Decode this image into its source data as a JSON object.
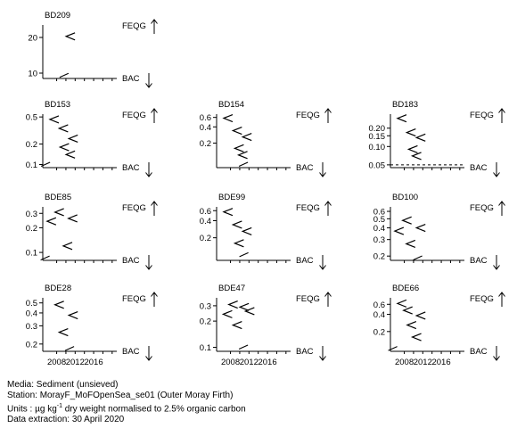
{
  "chart_data": [
    {
      "type": "scatter",
      "title": "BD209",
      "yticks": [
        10,
        20
      ],
      "ylim": [
        8.5,
        23.5
      ],
      "xlim": [
        2005,
        2021
      ],
      "xticks": [
        2008,
        2012,
        2016
      ],
      "show_xtick_labels": false,
      "points": [
        [
          2011,
          20.3
        ]
      ],
      "bac_line": false,
      "bac_marker": [
        2009.6,
        9.3
      ],
      "feqg_label": "FEQG",
      "bac_label": "BAC"
    },
    {
      "type": "scatter",
      "title": "BD153",
      "yticks": [
        0.1,
        0.2,
        0.5
      ],
      "ylim": [
        0.09,
        0.55
      ],
      "log_scale": true,
      "xlim": [
        2005,
        2021
      ],
      "xticks": [
        2008,
        2012,
        2016
      ],
      "show_xtick_labels": false,
      "points": [
        [
          2007.5,
          0.46
        ],
        [
          2009.5,
          0.34
        ],
        [
          2009.7,
          0.18
        ],
        [
          2011.6,
          0.24
        ],
        [
          2011,
          0.14
        ]
      ],
      "bac_line": false,
      "bac_marker": [
        2005.6,
        0.1
      ],
      "feqg_label": "FEQG",
      "bac_label": "BAC"
    },
    {
      "type": "scatter",
      "title": "BD154",
      "yticks": [
        0.2,
        0.4,
        0.6
      ],
      "ylim": [
        0.07,
        0.69
      ],
      "log_scale": true,
      "xlim": [
        2005,
        2021
      ],
      "xticks": [
        2008,
        2012,
        2016
      ],
      "show_xtick_labels": false,
      "points": [
        [
          2007.5,
          0.58
        ],
        [
          2009.5,
          0.34
        ],
        [
          2011.6,
          0.26
        ],
        [
          2009.9,
          0.16
        ],
        [
          2010.7,
          0.12
        ]
      ],
      "bac_line": false,
      "bac_marker": [
        2010.8,
        0.08
      ],
      "feqg_label": "FEQG",
      "bac_label": "BAC"
    },
    {
      "type": "scatter",
      "title": "BD183",
      "yticks": [
        0.05,
        0.1,
        0.15,
        0.2
      ],
      "ylim": [
        0.045,
        0.34
      ],
      "log_scale": true,
      "xlim": [
        2005,
        2021
      ],
      "xticks": [
        2008,
        2012,
        2016
      ],
      "show_xtick_labels": false,
      "points": [
        [
          2007.5,
          0.29
        ],
        [
          2009.5,
          0.17
        ],
        [
          2011.6,
          0.14
        ],
        [
          2009.9,
          0.09
        ],
        [
          2010.7,
          0.07
        ]
      ],
      "bac_line": true,
      "bac_line_value": 0.05,
      "bac_marker": null,
      "feqg_label": "FEQG",
      "bac_label": "BAC"
    },
    {
      "type": "scatter",
      "title": "BDE85",
      "yticks": [
        0.1,
        0.2,
        0.3
      ],
      "ylim": [
        0.08,
        0.36
      ],
      "log_scale": true,
      "xlim": [
        2005,
        2021
      ],
      "xticks": [
        2008,
        2012,
        2016
      ],
      "show_xtick_labels": false,
      "points": [
        [
          2008.6,
          0.31
        ],
        [
          2006.9,
          0.24
        ],
        [
          2011.5,
          0.26
        ],
        [
          2010.4,
          0.12
        ]
      ],
      "bac_line": false,
      "bac_marker": [
        2005.5,
        0.085
      ],
      "feqg_label": "FEQG",
      "bac_label": "BAC"
    },
    {
      "type": "scatter",
      "title": "BDE99",
      "yticks": [
        0.2,
        0.4,
        0.6
      ],
      "ylim": [
        0.08,
        0.7
      ],
      "log_scale": true,
      "xlim": [
        2005,
        2021
      ],
      "xticks": [
        2008,
        2012,
        2016
      ],
      "show_xtick_labels": false,
      "points": [
        [
          2007.5,
          0.57
        ],
        [
          2009.5,
          0.34
        ],
        [
          2011.6,
          0.26
        ],
        [
          2009.9,
          0.16
        ]
      ],
      "bac_line": false,
      "bac_marker": [
        2010.9,
        0.1
      ],
      "feqg_label": "FEQG",
      "bac_label": "BAC"
    },
    {
      "type": "scatter",
      "title": "BD100",
      "yticks": [
        0.2,
        0.3,
        0.4,
        0.5,
        0.6
      ],
      "ylim": [
        0.18,
        0.67
      ],
      "log_scale": true,
      "xlim": [
        2005,
        2021
      ],
      "xticks": [
        2008,
        2012,
        2016
      ],
      "show_xtick_labels": false,
      "points": [
        [
          2008.6,
          0.48
        ],
        [
          2006.9,
          0.37
        ],
        [
          2011.6,
          0.4
        ],
        [
          2009.4,
          0.27
        ]
      ],
      "bac_line": false,
      "bac_marker": [
        2010.9,
        0.19
      ],
      "feqg_label": "FEQG",
      "bac_label": "BAC"
    },
    {
      "type": "scatter",
      "title": "BDE28",
      "yticks": [
        0.2,
        0.3,
        0.4,
        0.5
      ],
      "ylim": [
        0.17,
        0.56
      ],
      "log_scale": true,
      "xlim": [
        2005,
        2021
      ],
      "xticks": [
        2008,
        2012,
        2016
      ],
      "show_xtick_labels": true,
      "points": [
        [
          2008.6,
          0.48
        ],
        [
          2011.6,
          0.38
        ],
        [
          2009.5,
          0.26
        ]
      ],
      "bac_line": false,
      "bac_marker": [
        2010.8,
        0.18
      ],
      "feqg_label": "FEQG",
      "bac_label": "BAC"
    },
    {
      "type": "scatter",
      "title": "BDE47",
      "yticks": [
        0.1,
        0.2,
        0.3
      ],
      "ylim": [
        0.09,
        0.37
      ],
      "log_scale": true,
      "xlim": [
        2005,
        2021
      ],
      "xticks": [
        2008,
        2012,
        2016
      ],
      "show_xtick_labels": true,
      "points": [
        [
          2008.6,
          0.31
        ],
        [
          2011,
          0.29
        ],
        [
          2012.2,
          0.26
        ],
        [
          2007.4,
          0.24
        ],
        [
          2009.5,
          0.18
        ]
      ],
      "bac_line": false,
      "bac_marker": [
        2010.8,
        0.1
      ],
      "feqg_label": "FEQG",
      "bac_label": "BAC"
    },
    {
      "type": "scatter",
      "title": "BDE66",
      "yticks": [
        0.2,
        0.4,
        0.6
      ],
      "ylim": [
        0.09,
        0.78
      ],
      "log_scale": true,
      "xlim": [
        2005,
        2021
      ],
      "xticks": [
        2008,
        2012,
        2016
      ],
      "show_xtick_labels": true,
      "points": [
        [
          2007.5,
          0.62
        ],
        [
          2008.8,
          0.47
        ],
        [
          2011.6,
          0.38
        ],
        [
          2009.6,
          0.26
        ],
        [
          2010.7,
          0.16
        ]
      ],
      "bac_line": false,
      "bac_marker": [
        2005.5,
        0.1
      ],
      "feqg_label": "FEQG",
      "bac_label": "BAC"
    }
  ],
  "footer": {
    "media": "Media: Sediment (unsieved)",
    "station": "Station: MorayF_MoFOpenSea_se01 (Outer Moray Firth)",
    "units_prefix": "Units : µg kg",
    "units_sup": "-1",
    "units_suffix": " dry weight normalised to 2.5% organic carbon",
    "extraction": "Data extraction: 30 April 2020"
  }
}
